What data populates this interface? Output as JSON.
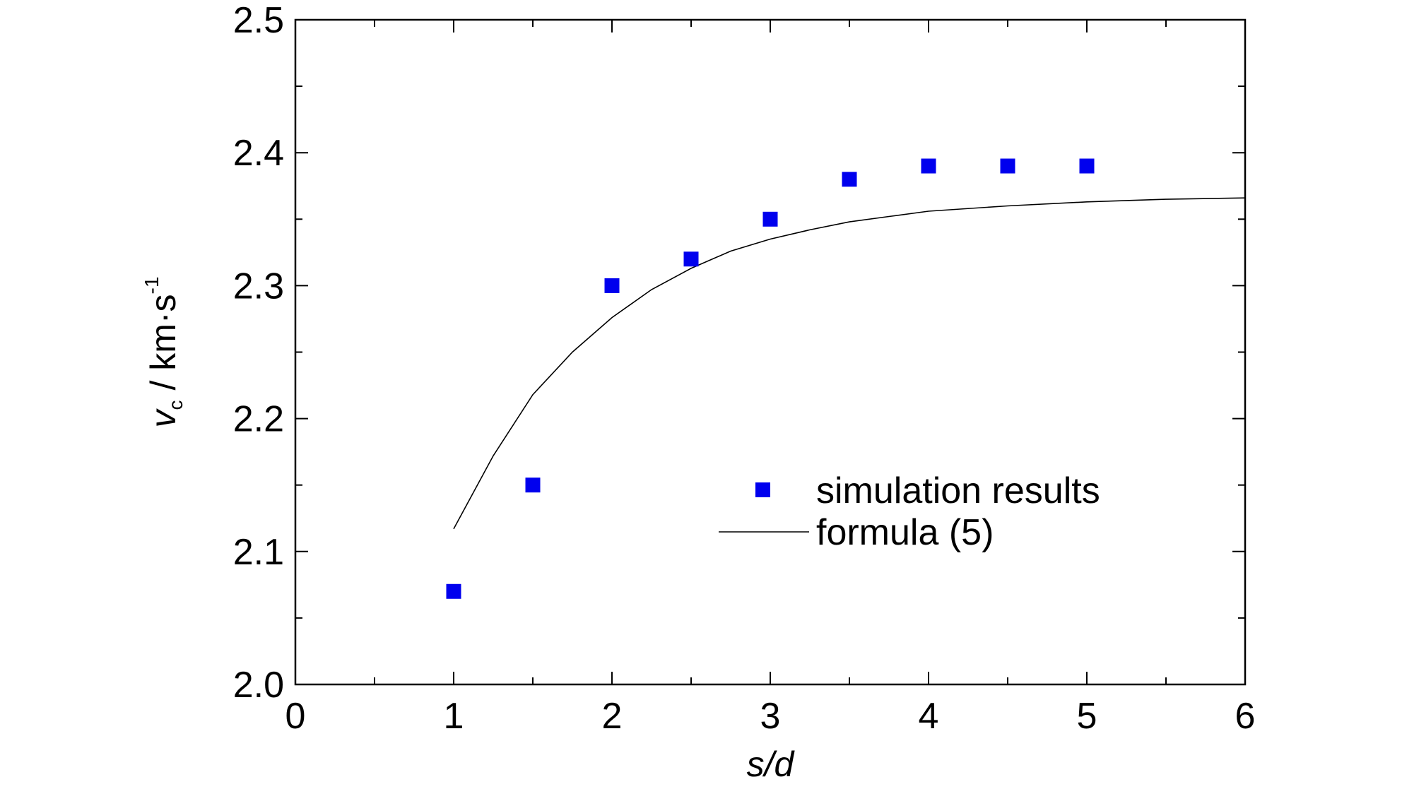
{
  "chart_data": {
    "type": "scatter",
    "xlabel_italic": "s/d",
    "ylabel": {
      "symbol": "v",
      "subscript": "c",
      "unit": " / km·s",
      "superscript": "-1"
    },
    "xlim": [
      0,
      6
    ],
    "ylim": [
      2.0,
      2.5
    ],
    "x_ticks": [
      0,
      1,
      2,
      3,
      4,
      5,
      6
    ],
    "x_tick_labels": [
      "0",
      "1",
      "2",
      "3",
      "4",
      "5",
      "6"
    ],
    "y_ticks": [
      2.0,
      2.1,
      2.2,
      2.3,
      2.4,
      2.5
    ],
    "y_tick_labels": [
      "2.0",
      "2.1",
      "2.2",
      "2.3",
      "2.4",
      "2.5"
    ],
    "grid": false,
    "legend_position": "lower-right",
    "colors": {
      "simulation": "#0000ee",
      "formula": "#000000"
    },
    "series": [
      {
        "name": "simulation results",
        "kind": "markers",
        "x": [
          1.0,
          1.5,
          2.0,
          2.5,
          3.0,
          3.5,
          4.0,
          4.5,
          5.0
        ],
        "y": [
          2.07,
          2.15,
          2.3,
          2.32,
          2.35,
          2.38,
          2.39,
          2.39,
          2.39
        ]
      },
      {
        "name": "formula (5)",
        "kind": "line",
        "x": [
          1.0,
          1.25,
          1.5,
          1.75,
          2.0,
          2.25,
          2.5,
          2.75,
          3.0,
          3.25,
          3.5,
          3.75,
          4.0,
          4.5,
          5.0,
          5.5,
          6.0
        ],
        "y": [
          2.117,
          2.172,
          2.218,
          2.25,
          2.276,
          2.297,
          2.313,
          2.326,
          2.335,
          2.342,
          2.348,
          2.352,
          2.356,
          2.36,
          2.363,
          2.365,
          2.366
        ]
      }
    ]
  }
}
